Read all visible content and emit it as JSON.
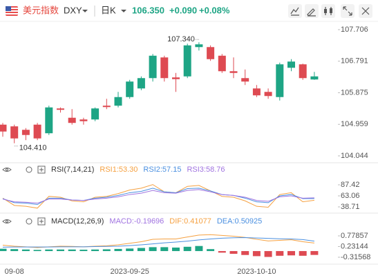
{
  "header": {
    "name": "美元指数",
    "symbol": "DXY",
    "period": "日K",
    "price": "106.350",
    "change": "+0.090",
    "change_pct": "+0.08%"
  },
  "chart_data": [
    {
      "type": "candlestick",
      "categories": [
        null,
        "09-08",
        null,
        null,
        null,
        null,
        null,
        null,
        null,
        null,
        null,
        "2023-09-25",
        null,
        null,
        null,
        null,
        null,
        null,
        null,
        null,
        null,
        null,
        "2023-10-10",
        null,
        null,
        null,
        null,
        null
      ],
      "open": [
        104.95,
        104.9,
        104.8,
        104.95,
        104.7,
        105.42,
        105.15,
        105.1,
        105.1,
        105.5,
        105.5,
        105.75,
        106.0,
        106.3,
        106.9,
        106.32,
        106.35,
        107.2,
        107.2,
        106.95,
        106.5,
        106.3,
        106.0,
        105.9,
        105.75,
        106.6,
        106.7,
        106.26
      ],
      "high": [
        105.0,
        104.95,
        104.85,
        105.0,
        105.5,
        105.45,
        105.4,
        105.15,
        105.45,
        105.7,
        105.9,
        106.25,
        106.35,
        107.0,
        106.95,
        106.45,
        107.3,
        107.34,
        107.25,
        107.0,
        106.9,
        106.55,
        106.1,
        106.0,
        106.75,
        106.85,
        106.72,
        106.48
      ],
      "low": [
        104.6,
        104.41,
        104.5,
        104.5,
        104.65,
        105.3,
        104.95,
        104.95,
        105.05,
        105.4,
        105.45,
        105.7,
        105.95,
        106.2,
        106.2,
        105.9,
        106.3,
        107.1,
        106.8,
        106.45,
        106.3,
        106.1,
        105.75,
        105.7,
        105.65,
        106.5,
        106.25,
        106.25
      ],
      "close": [
        104.75,
        104.55,
        104.65,
        104.55,
        105.45,
        105.38,
        105.0,
        105.05,
        105.42,
        105.46,
        105.75,
        106.2,
        106.3,
        106.95,
        106.3,
        106.27,
        107.25,
        107.28,
        106.85,
        106.5,
        106.45,
        106.2,
        105.8,
        105.78,
        106.7,
        106.78,
        106.3,
        106.35
      ],
      "up_color": "#1ea585",
      "down_color": "#de4a52",
      "ylim": [
        103.844,
        107.926
      ],
      "yticks": [
        104.044,
        104.959,
        105.875,
        106.791,
        107.706
      ],
      "annotations": [
        {
          "value": 107.34,
          "label": "107.340",
          "index": 17,
          "at": "high"
        },
        {
          "value": 104.41,
          "label": "104.410",
          "index": 1,
          "at": "low"
        }
      ]
    },
    {
      "type": "line",
      "title": "RSI(7,14,21)",
      "series": [
        {
          "name": "RSI1:53.30",
          "color": "#f5a040",
          "values": [
            58,
            42,
            40,
            36,
            62,
            60,
            52,
            50,
            60,
            62,
            68,
            76,
            80,
            88,
            72,
            70,
            84,
            86,
            74,
            62,
            60,
            52,
            40,
            38,
            66,
            70,
            50,
            53.3
          ]
        },
        {
          "name": "RSI2:57.15",
          "color": "#4a8fe0",
          "values": [
            57,
            48,
            47,
            44,
            58,
            58,
            54,
            53,
            58,
            60,
            64,
            70,
            73,
            80,
            72,
            70,
            79,
            80,
            74,
            66,
            64,
            58,
            50,
            48,
            63,
            66,
            57,
            57.15
          ]
        },
        {
          "name": "RSI3:58.76",
          "color": "#a073e0",
          "values": [
            56,
            50,
            49,
            47,
            56,
            56,
            54,
            53,
            56,
            58,
            61,
            66,
            69,
            75,
            70,
            69,
            75,
            77,
            72,
            66,
            64,
            60,
            53,
            51,
            61,
            63,
            58,
            58.76
          ]
        }
      ],
      "ylim": [
        26.53,
        102.64
      ],
      "yticks": [
        38.71,
        63.06,
        87.42
      ]
    },
    {
      "type": "line",
      "title": "MACD(12,26,9)",
      "histogram": {
        "name": "MACD:-0.19696",
        "color": "#a073e0",
        "up_color": "#1ea585",
        "down_color": "#de4a52",
        "values": [
          0.12,
          0.1,
          0.08,
          0.06,
          0.08,
          0.08,
          0.08,
          0.07,
          0.08,
          0.09,
          0.11,
          0.13,
          0.16,
          0.2,
          0.2,
          0.18,
          0.22,
          0.26,
          0.1,
          -0.08,
          -0.14,
          -0.2,
          -0.26,
          -0.3,
          -0.24,
          -0.22,
          -0.24,
          -0.19696
        ]
      },
      "series": [
        {
          "name": "DIF:0.41077",
          "color": "#f5a040",
          "values": [
            0.3,
            0.25,
            0.22,
            0.18,
            0.22,
            0.25,
            0.24,
            0.22,
            0.25,
            0.27,
            0.32,
            0.4,
            0.48,
            0.6,
            0.62,
            0.62,
            0.72,
            0.82,
            0.84,
            0.8,
            0.76,
            0.7,
            0.6,
            0.52,
            0.55,
            0.58,
            0.48,
            0.41077
          ]
        },
        {
          "name": "DEA:0.50925",
          "color": "#4a8fe0",
          "values": [
            0.2,
            0.21,
            0.21,
            0.21,
            0.21,
            0.22,
            0.22,
            0.22,
            0.23,
            0.24,
            0.25,
            0.28,
            0.32,
            0.37,
            0.42,
            0.46,
            0.51,
            0.57,
            0.62,
            0.66,
            0.68,
            0.69,
            0.67,
            0.65,
            0.63,
            0.62,
            0.59,
            0.50925
          ]
        }
      ],
      "ylim": [
        -0.6334,
        1.1316
      ],
      "yticks": [
        -0.31568,
        0.23144,
        0.77857
      ]
    }
  ]
}
